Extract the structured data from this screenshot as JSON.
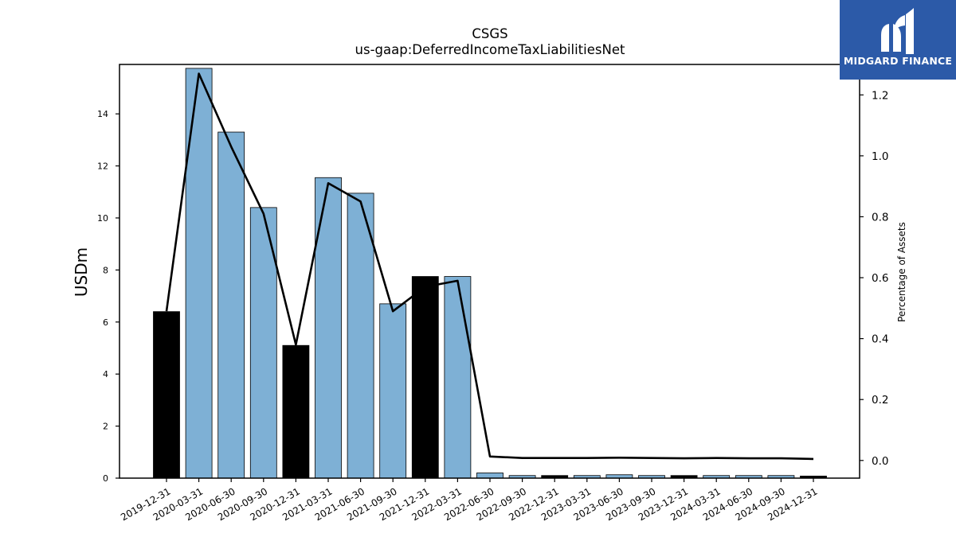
{
  "chart_data": {
    "type": "bar",
    "title": "CSGS",
    "subtitle": "us-gaap:DeferredIncomeTaxLiabilitiesNet",
    "ylabel": "USDm",
    "y2label": "Percentage of Assets",
    "ylim": [
      0,
      15.9
    ],
    "y2lim": [
      -0.058,
      1.3
    ],
    "yticks": [
      0,
      2,
      4,
      6,
      8,
      10,
      12,
      14
    ],
    "y2ticks": [
      0.0,
      0.2,
      0.4,
      0.6,
      0.8,
      1.0,
      1.2
    ],
    "y2tick_labels": [
      "0.0",
      "0.2",
      "0.4",
      "0.6",
      "0.8",
      "1.0",
      "1.2"
    ],
    "categories": [
      "2019-12-31",
      "2020-03-31",
      "2020-06-30",
      "2020-09-30",
      "2020-12-31",
      "2021-03-31",
      "2021-06-30",
      "2021-09-30",
      "2021-12-31",
      "2022-03-31",
      "2022-06-30",
      "2022-09-30",
      "2022-12-31",
      "2023-03-31",
      "2023-06-30",
      "2023-09-30",
      "2023-12-31",
      "2024-03-31",
      "2024-06-30",
      "2024-09-30",
      "2024-12-31"
    ],
    "values": [
      6.4,
      15.75,
      13.3,
      10.4,
      5.1,
      11.55,
      10.95,
      6.7,
      7.75,
      7.75,
      0.2,
      0.1,
      0.1,
      0.1,
      0.13,
      0.1,
      0.1,
      0.1,
      0.1,
      0.1,
      0.08
    ],
    "bar_highlight": [
      true,
      false,
      false,
      false,
      true,
      false,
      false,
      false,
      true,
      false,
      false,
      false,
      true,
      false,
      false,
      false,
      true,
      false,
      false,
      false,
      true
    ],
    "line_series": {
      "name": "",
      "axis": "right",
      "values": [
        0.49,
        1.27,
        1.03,
        0.81,
        0.38,
        0.91,
        0.85,
        0.49,
        0.57,
        0.59,
        0.013,
        0.008,
        0.008,
        0.008,
        0.009,
        0.008,
        0.007,
        0.008,
        0.007,
        0.007,
        0.005
      ]
    },
    "colors": {
      "bar": "#7eb0d5",
      "bar_highlight": "#000000",
      "line": "#000000"
    },
    "grid": false,
    "legend": "none"
  },
  "logo": {
    "text": "MIDGARD FINANCE"
  }
}
